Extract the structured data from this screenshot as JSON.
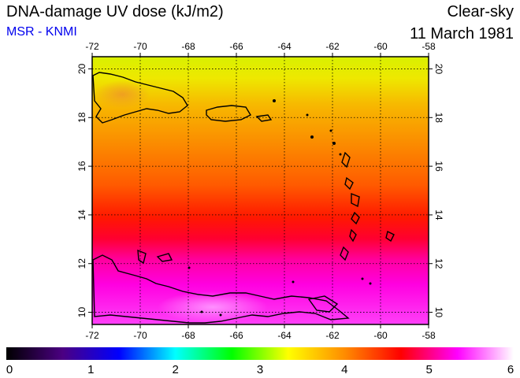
{
  "header": {
    "title": "DNA-damage UV dose (kJ/m2)",
    "source": "MSR - KNMI",
    "sky_condition": "Clear-sky",
    "date": "11 March 1981"
  },
  "map": {
    "region": "Caribbean",
    "lon_range": [
      -72,
      -58
    ],
    "lat_range": [
      9.5,
      20.5
    ],
    "lon_ticks": [
      "-72",
      "-70",
      "-68",
      "-66",
      "-64",
      "-62",
      "-60",
      "-58"
    ],
    "lat_ticks": [
      "10",
      "12",
      "14",
      "16",
      "18",
      "20"
    ],
    "gridlines": "dotted"
  },
  "colorbar": {
    "min": 0,
    "max": 6,
    "labels": [
      "0",
      "1",
      "2",
      "3",
      "4",
      "5",
      "6"
    ],
    "colors": [
      "#000000",
      "#4b0082",
      "#0000ff",
      "#00ffff",
      "#00ff00",
      "#ffff00",
      "#ff8c00",
      "#ff0000",
      "#ff00ff",
      "#ffffff"
    ]
  },
  "chart_data": {
    "type": "heatmap",
    "title": "DNA-damage UV dose (kJ/m2)",
    "x_axis": "longitude",
    "y_axis": "latitude",
    "xlim": [
      -72,
      -58
    ],
    "ylim": [
      9.5,
      20.5
    ],
    "value_range": [
      0,
      6
    ],
    "approx_values_by_latitude": [
      {
        "lat": 20,
        "value": 3.6
      },
      {
        "lat": 18,
        "value": 3.9
      },
      {
        "lat": 16,
        "value": 4.1
      },
      {
        "lat": 14,
        "value": 4.6
      },
      {
        "lat": 12,
        "value": 5.0
      },
      {
        "lat": 10,
        "value": 5.3
      }
    ]
  }
}
